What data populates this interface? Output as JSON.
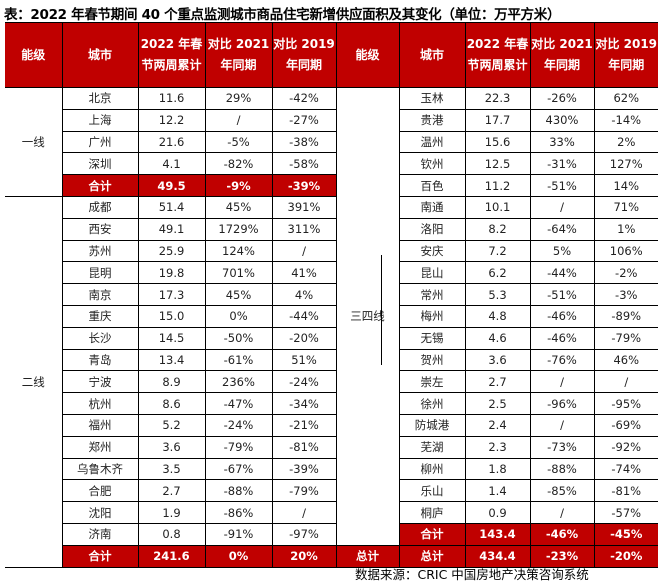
{
  "title": "表：2022 年春节期间 40 个重点监测城市商品住宅新增供应面积及其变化（单位：万平方米）",
  "headers": [
    "能级",
    "城市",
    "2022 年春节两周累计",
    "对比 2021 年同期",
    "对比 2019 年同期",
    "能级",
    "城市",
    "2022 年春节两周累计",
    "对比 2021 年同期",
    "对比 2019 年同期"
  ],
  "colors": {
    "header_bg": "#c00000",
    "header_text": "#ffffff"
  },
  "left": {
    "tier1": {
      "label": "一线",
      "rows": [
        [
          "北京",
          "11.6",
          "29%",
          "-42%"
        ],
        [
          "上海",
          "12.2",
          "/",
          "-27%"
        ],
        [
          "广州",
          "21.6",
          "-5%",
          "-38%"
        ],
        [
          "深圳",
          "4.1",
          "-82%",
          "-58%"
        ]
      ],
      "subtotal": [
        "合计",
        "49.5",
        "-9%",
        "-39%"
      ]
    },
    "tier2": {
      "label": "二线",
      "rows": [
        [
          "成都",
          "51.4",
          "45%",
          "391%"
        ],
        [
          "西安",
          "49.1",
          "1729%",
          "311%"
        ],
        [
          "苏州",
          "25.9",
          "124%",
          "/"
        ],
        [
          "昆明",
          "19.8",
          "701%",
          "41%"
        ],
        [
          "南京",
          "17.3",
          "45%",
          "4%"
        ],
        [
          "重庆",
          "15.0",
          "0%",
          "-44%"
        ],
        [
          "长沙",
          "14.5",
          "-50%",
          "-20%"
        ],
        [
          "青岛",
          "13.4",
          "-61%",
          "51%"
        ],
        [
          "宁波",
          "8.9",
          "236%",
          "-24%"
        ],
        [
          "杭州",
          "8.6",
          "-47%",
          "-34%"
        ],
        [
          "福州",
          "5.2",
          "-24%",
          "-21%"
        ],
        [
          "郑州",
          "3.6",
          "-79%",
          "-81%"
        ],
        [
          "乌鲁木齐",
          "3.5",
          "-67%",
          "-39%"
        ],
        [
          "合肥",
          "2.7",
          "-88%",
          "-79%"
        ],
        [
          "沈阳",
          "1.9",
          "-86%",
          "/"
        ],
        [
          "济南",
          "0.8",
          "-91%",
          "-97%"
        ]
      ],
      "subtotal": [
        "合计",
        "241.6",
        "0%",
        "20%"
      ]
    }
  },
  "right": {
    "tier3": {
      "label": "三四线",
      "rows": [
        [
          "玉林",
          "22.3",
          "-26%",
          "62%"
        ],
        [
          "贵港",
          "17.7",
          "430%",
          "-14%"
        ],
        [
          "温州",
          "15.6",
          "33%",
          "2%"
        ],
        [
          "钦州",
          "12.5",
          "-31%",
          "127%"
        ],
        [
          "百色",
          "11.2",
          "-51%",
          "14%"
        ],
        [
          "南通",
          "10.1",
          "/",
          "71%"
        ],
        [
          "洛阳",
          "8.2",
          "-64%",
          "1%"
        ],
        [
          "安庆",
          "7.2",
          "5%",
          "106%"
        ],
        [
          "昆山",
          "6.2",
          "-44%",
          "-2%"
        ],
        [
          "常州",
          "5.3",
          "-51%",
          "-3%"
        ],
        [
          "梅州",
          "4.8",
          "-46%",
          "-89%"
        ],
        [
          "无锡",
          "4.6",
          "-46%",
          "-79%"
        ],
        [
          "贺州",
          "3.6",
          "-76%",
          "46%"
        ],
        [
          "崇左",
          "2.7",
          "/",
          "/"
        ],
        [
          "徐州",
          "2.5",
          "-96%",
          "-95%"
        ],
        [
          "防城港",
          "2.4",
          "/",
          "-69%"
        ],
        [
          "芜湖",
          "2.3",
          "-73%",
          "-92%"
        ],
        [
          "柳州",
          "1.8",
          "-88%",
          "-74%"
        ],
        [
          "乐山",
          "1.4",
          "-85%",
          "-81%"
        ],
        [
          "桐庐",
          "0.9",
          "/",
          "-57%"
        ]
      ],
      "subtotal": [
        "合计",
        "143.4",
        "-46%",
        "-45%"
      ]
    },
    "total_label": "总计",
    "total": [
      "总计",
      "434.4",
      "-23%",
      "-20%"
    ]
  },
  "source": "数据来源：CRIC 中国房地产决策咨询系统"
}
